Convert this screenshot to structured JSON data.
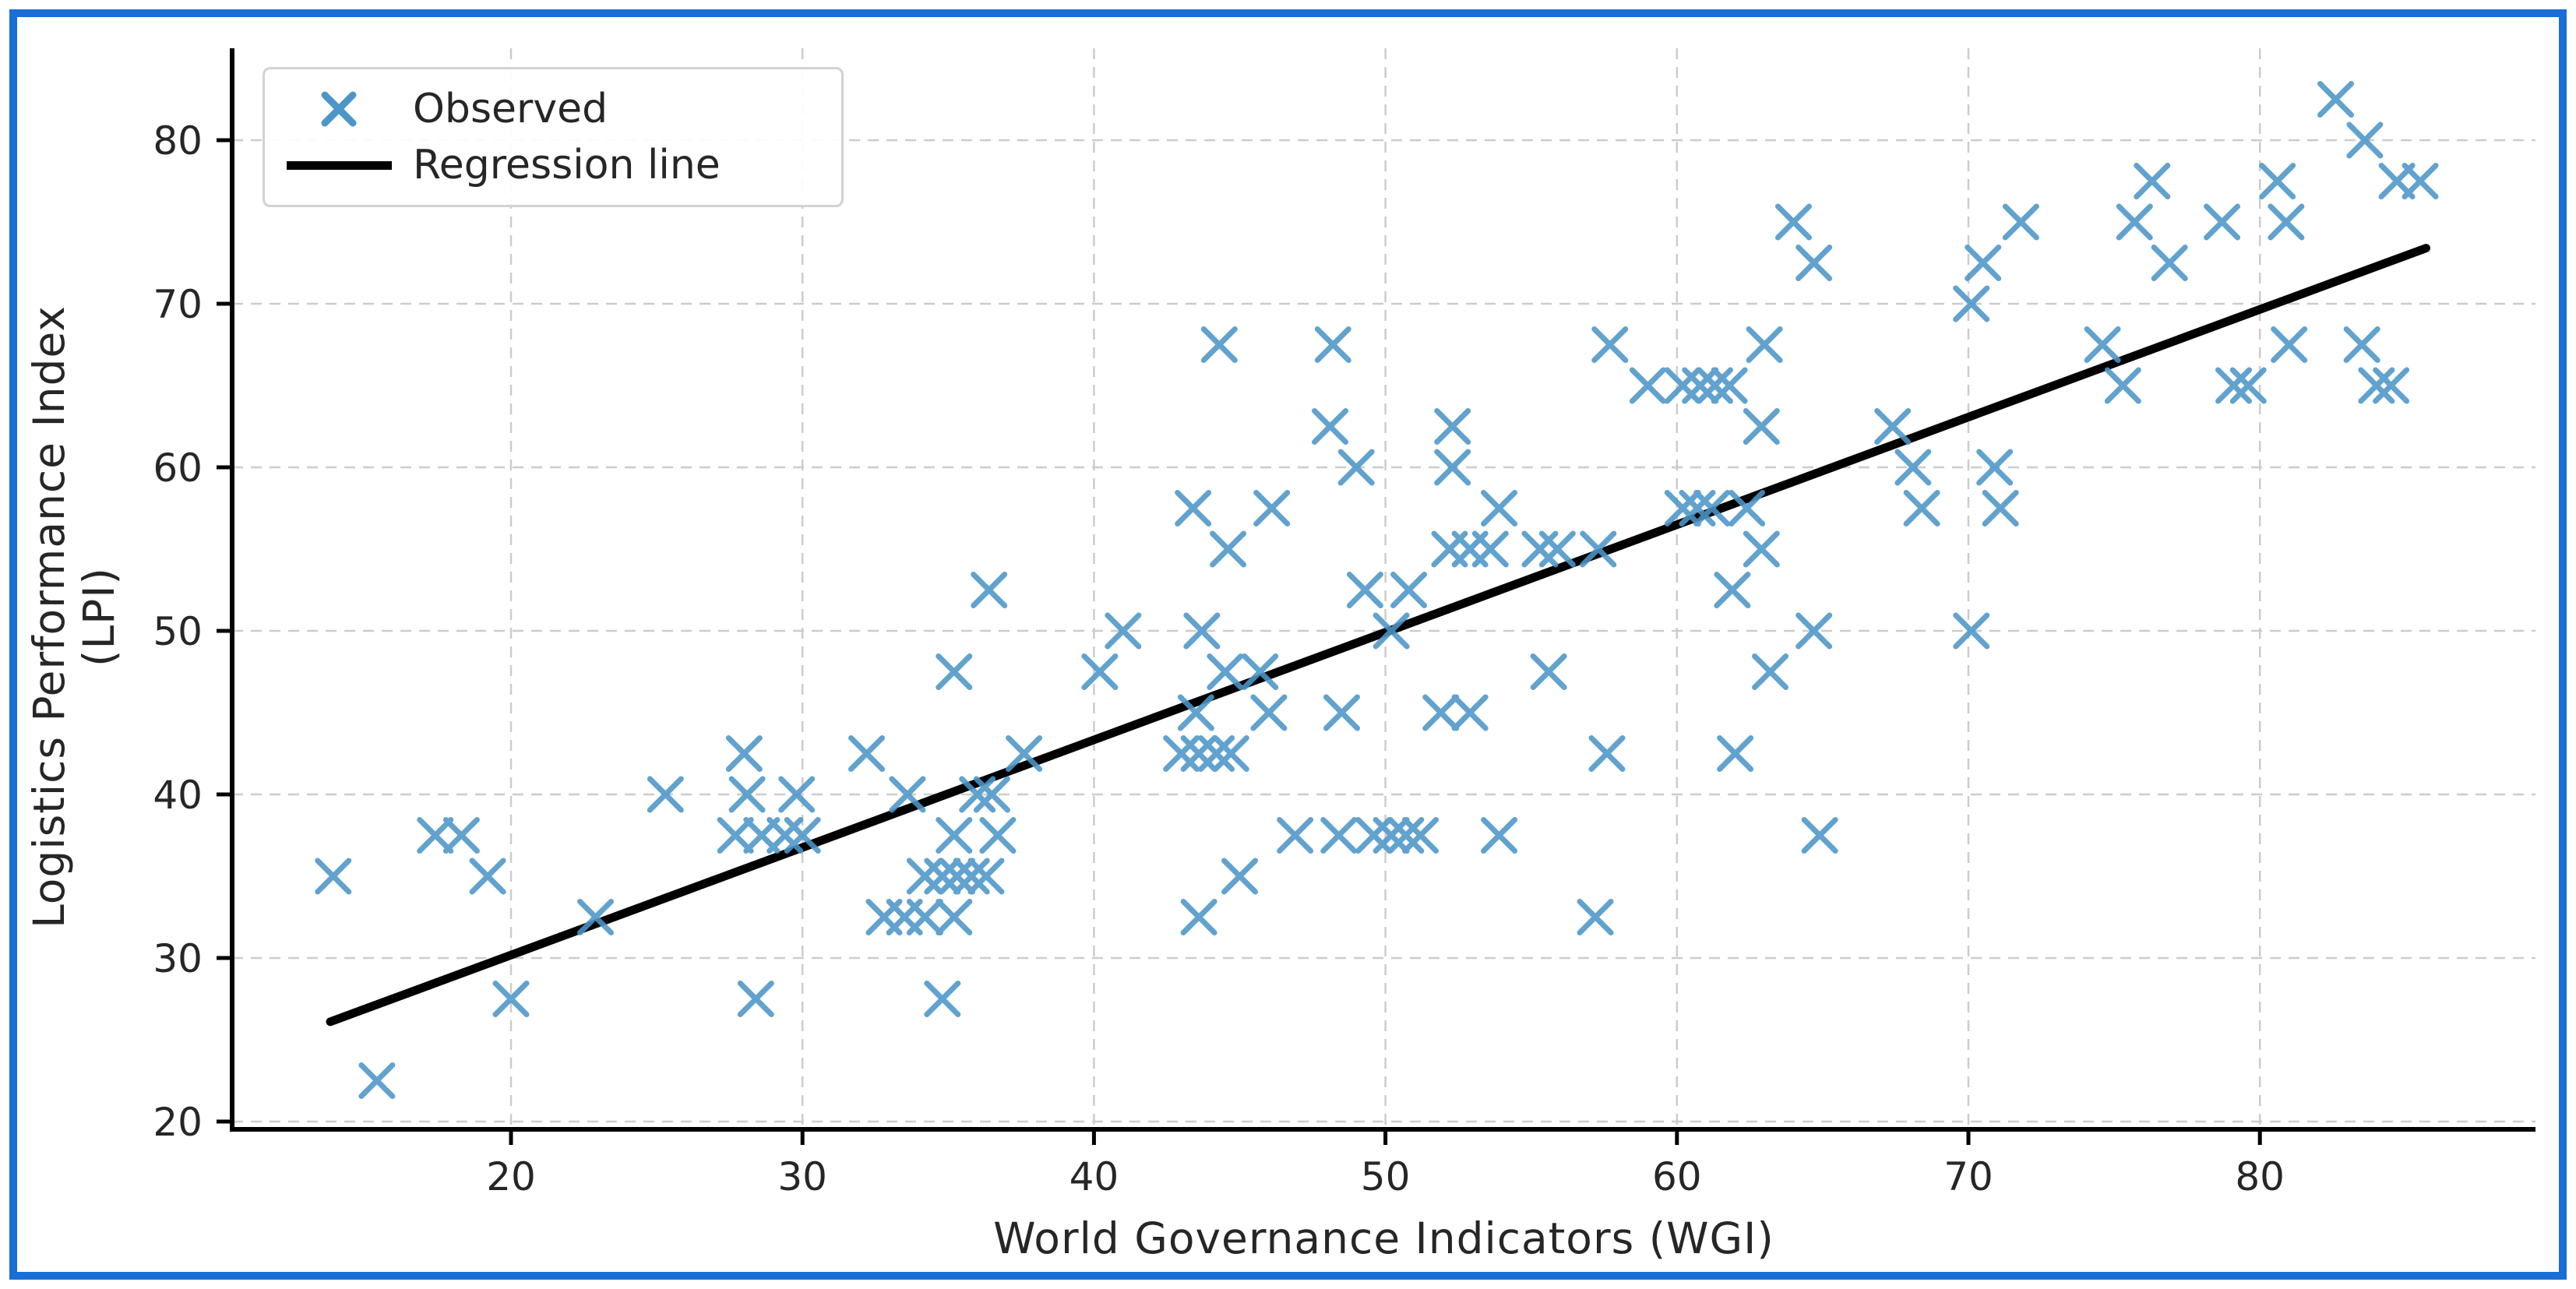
{
  "frame": {
    "border_color": "#1a6ed8"
  },
  "chart_data": {
    "type": "scatter",
    "title": "",
    "xlabel": "World Governance Indicators (WGI)",
    "ylabel": "Logistics Performance Index (LPI)",
    "x_ticks": [
      20,
      30,
      40,
      50,
      60,
      70,
      80
    ],
    "y_ticks": [
      20,
      30,
      40,
      50,
      60,
      70,
      80
    ],
    "xlim": [
      10.4,
      89.5
    ],
    "ylim": [
      19.5,
      85.6
    ],
    "grid": "dashed",
    "grid_color": "#cccccc",
    "marker": "x",
    "marker_color": "#4C96C8",
    "line_color": "#000000",
    "text_color": "#262626",
    "legend": {
      "position": "upper-left",
      "entries": [
        {
          "label": "Observed",
          "type": "marker"
        },
        {
          "label": "Regression line",
          "type": "line"
        }
      ]
    },
    "regression_line": {
      "x1": 13.8,
      "y1": 26.1,
      "x2": 85.7,
      "y2": 73.4
    },
    "points": [
      [
        82.6,
        82.5
      ],
      [
        83.6,
        80
      ],
      [
        76.3,
        77.5
      ],
      [
        80.6,
        77.5
      ],
      [
        84.7,
        77.5
      ],
      [
        85.5,
        77.5
      ],
      [
        64.0,
        75
      ],
      [
        71.8,
        75
      ],
      [
        75.7,
        75
      ],
      [
        78.7,
        75
      ],
      [
        80.9,
        75
      ],
      [
        64.7,
        72.5
      ],
      [
        70.5,
        72.5
      ],
      [
        76.9,
        72.5
      ],
      [
        70.1,
        70
      ],
      [
        44.3,
        67.5
      ],
      [
        48.2,
        67.5
      ],
      [
        57.7,
        67.5
      ],
      [
        63.0,
        67.5
      ],
      [
        74.6,
        67.5
      ],
      [
        81.0,
        67.5
      ],
      [
        83.5,
        67.5
      ],
      [
        59.0,
        65
      ],
      [
        60.2,
        65
      ],
      [
        60.8,
        65
      ],
      [
        61.3,
        65
      ],
      [
        61.8,
        65
      ],
      [
        75.3,
        65
      ],
      [
        79.1,
        65
      ],
      [
        79.6,
        65
      ],
      [
        84.0,
        65
      ],
      [
        84.5,
        65
      ],
      [
        48.1,
        62.5
      ],
      [
        52.3,
        62.5
      ],
      [
        62.9,
        62.5
      ],
      [
        67.4,
        62.5
      ],
      [
        49.0,
        60
      ],
      [
        52.3,
        60
      ],
      [
        68.1,
        60
      ],
      [
        70.9,
        60
      ],
      [
        43.4,
        57.5
      ],
      [
        46.1,
        57.5
      ],
      [
        53.9,
        57.5
      ],
      [
        60.2,
        57.5
      ],
      [
        60.7,
        57.5
      ],
      [
        61.2,
        57.5
      ],
      [
        62.4,
        57.5
      ],
      [
        68.4,
        57.5
      ],
      [
        71.1,
        57.5
      ],
      [
        44.6,
        55
      ],
      [
        52.2,
        55
      ],
      [
        52.9,
        55
      ],
      [
        53.6,
        55
      ],
      [
        55.3,
        55
      ],
      [
        55.9,
        55
      ],
      [
        57.3,
        55
      ],
      [
        62.9,
        55
      ],
      [
        36.4,
        52.5
      ],
      [
        49.3,
        52.5
      ],
      [
        50.8,
        52.5
      ],
      [
        61.9,
        52.5
      ],
      [
        41.0,
        50
      ],
      [
        43.7,
        50
      ],
      [
        50.2,
        50
      ],
      [
        64.7,
        50
      ],
      [
        70.1,
        50
      ],
      [
        35.2,
        47.5
      ],
      [
        40.2,
        47.5
      ],
      [
        44.5,
        47.5
      ],
      [
        45.7,
        47.5
      ],
      [
        55.6,
        47.5
      ],
      [
        63.2,
        47.5
      ],
      [
        43.5,
        45
      ],
      [
        46.0,
        45
      ],
      [
        48.5,
        45
      ],
      [
        51.9,
        45
      ],
      [
        52.9,
        45
      ],
      [
        28.0,
        42.5
      ],
      [
        32.2,
        42.5
      ],
      [
        37.6,
        42.5
      ],
      [
        43.0,
        42.5
      ],
      [
        43.6,
        42.5
      ],
      [
        44.2,
        42.5
      ],
      [
        44.7,
        42.5
      ],
      [
        57.6,
        42.5
      ],
      [
        62.0,
        42.5
      ],
      [
        25.3,
        40
      ],
      [
        28.1,
        40
      ],
      [
        29.8,
        40
      ],
      [
        33.6,
        40
      ],
      [
        36.0,
        40
      ],
      [
        36.5,
        40
      ],
      [
        17.4,
        37.5
      ],
      [
        18.3,
        37.5
      ],
      [
        27.7,
        37.5
      ],
      [
        28.6,
        37.5
      ],
      [
        29.4,
        37.5
      ],
      [
        30.0,
        37.5
      ],
      [
        35.2,
        37.5
      ],
      [
        36.7,
        37.5
      ],
      [
        46.9,
        37.5
      ],
      [
        48.4,
        37.5
      ],
      [
        49.6,
        37.5
      ],
      [
        50.2,
        37.5
      ],
      [
        50.7,
        37.5
      ],
      [
        51.2,
        37.5
      ],
      [
        53.9,
        37.5
      ],
      [
        64.9,
        37.5
      ],
      [
        13.9,
        35
      ],
      [
        19.2,
        35
      ],
      [
        34.2,
        35
      ],
      [
        34.8,
        35
      ],
      [
        35.3,
        35
      ],
      [
        35.8,
        35
      ],
      [
        36.3,
        35
      ],
      [
        45.0,
        35
      ],
      [
        22.9,
        32.5
      ],
      [
        32.8,
        32.5
      ],
      [
        33.5,
        32.5
      ],
      [
        34.2,
        32.5
      ],
      [
        35.2,
        32.5
      ],
      [
        43.6,
        32.5
      ],
      [
        57.2,
        32.5
      ],
      [
        20.0,
        27.5
      ],
      [
        28.4,
        27.5
      ],
      [
        34.8,
        27.5
      ],
      [
        15.4,
        22.5
      ]
    ]
  }
}
